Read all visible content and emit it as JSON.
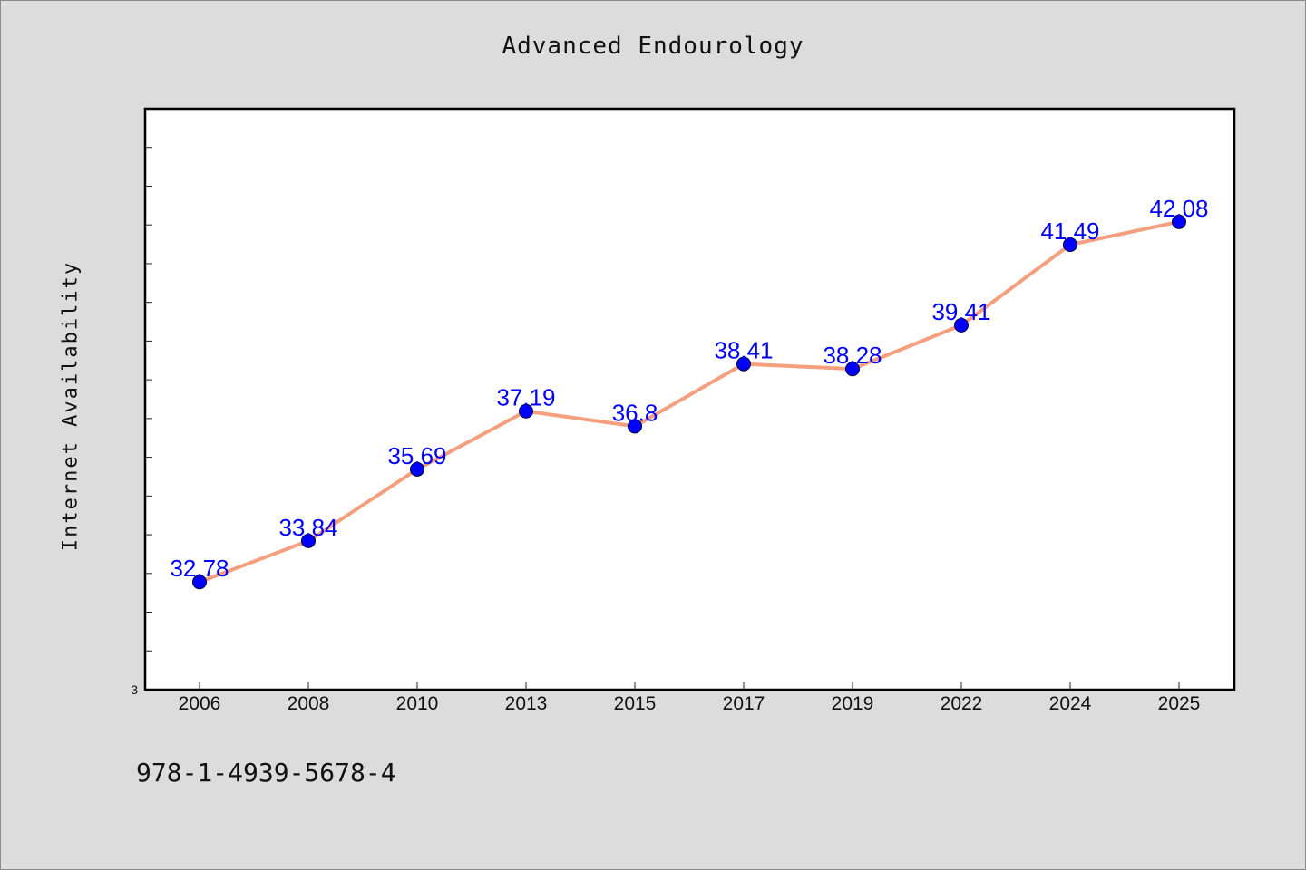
{
  "chart_data": {
    "type": "line",
    "title": "Advanced Endourology",
    "xlabel": "",
    "ylabel": "Internet Availability",
    "categories": [
      "2006",
      "2008",
      "2010",
      "2013",
      "2015",
      "2017",
      "2019",
      "2022",
      "2024",
      "2025"
    ],
    "series": [
      {
        "values": [
          32.78,
          33.84,
          35.69,
          37.19,
          36.8,
          38.41,
          38.28,
          39.41,
          41.49,
          42.08
        ],
        "labels": [
          "32.78",
          "33.84",
          "35.69",
          "37.19",
          "36.8",
          "38.41",
          "38.28",
          "39.41",
          "41.49",
          "42.08"
        ]
      }
    ],
    "ylim": [
      30.0,
      45.0
    ],
    "y_tick_labels": [
      "3"
    ],
    "grid": false,
    "legend": "none",
    "colors": {
      "line": "#f4a07e",
      "marker": "#0000ff",
      "label": "#0000ff"
    }
  },
  "footer_text": "978-1-4939-5678-4"
}
